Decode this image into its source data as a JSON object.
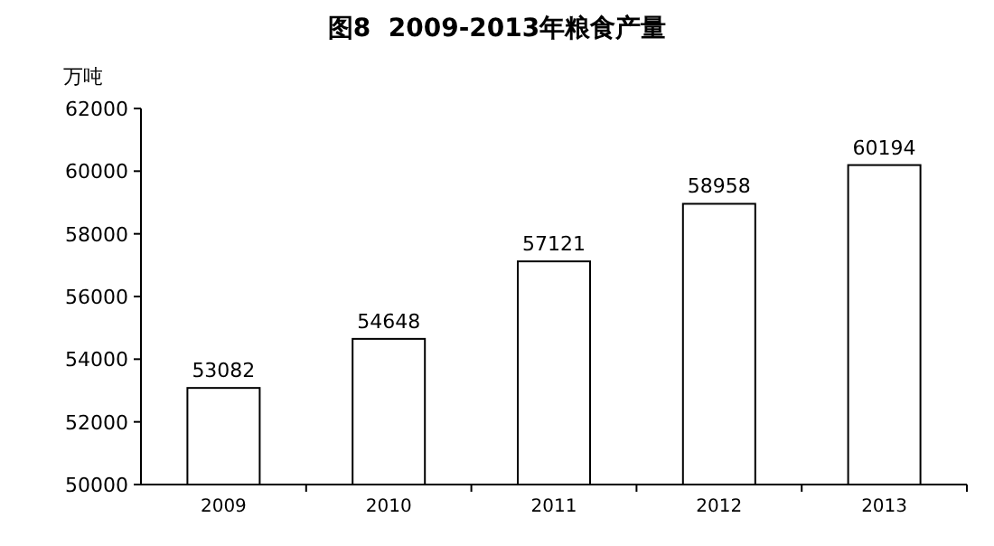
{
  "chart_data": {
    "type": "bar",
    "title": "图8  2009-2013年粮食产量",
    "ylabel": "万吨",
    "categories": [
      "2009",
      "2010",
      "2011",
      "2012",
      "2013"
    ],
    "values": [
      53082,
      54648,
      57121,
      58958,
      60194
    ],
    "color": "#ffffff",
    "ylim": [
      50000,
      62000
    ],
    "yticks": [
      50000,
      52000,
      54000,
      56000,
      58000,
      60000,
      62000
    ],
    "data_labels": true,
    "grid": false
  }
}
